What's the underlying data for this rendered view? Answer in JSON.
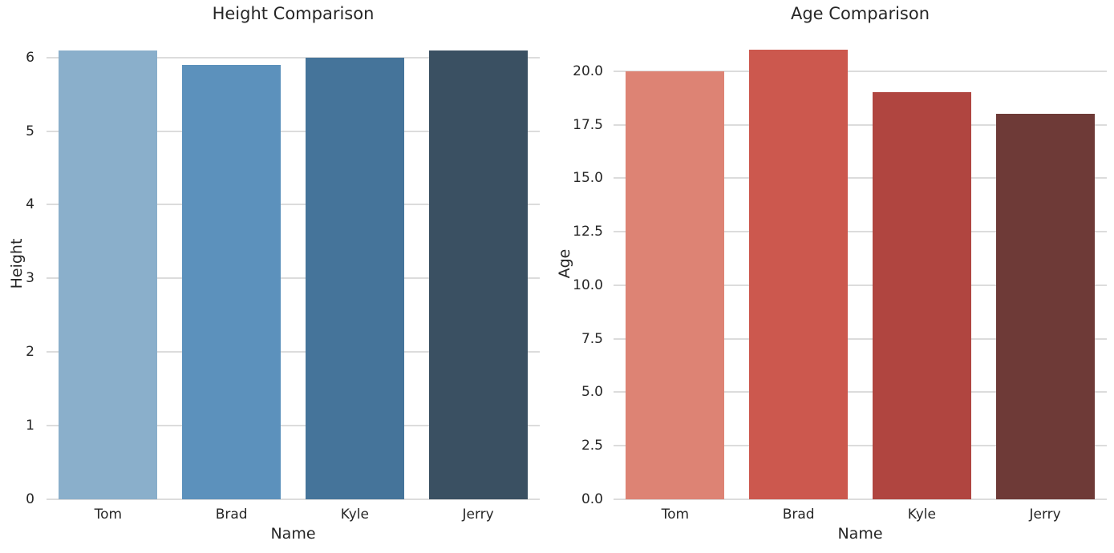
{
  "style": {
    "background": "#ffffff",
    "grid_color": "#dcdcdc",
    "text_color": "#262626"
  },
  "chart_data": [
    {
      "type": "bar",
      "title": "Height Comparison",
      "xlabel": "Name",
      "ylabel": "Height",
      "categories": [
        "Tom",
        "Brad",
        "Kyle",
        "Jerry"
      ],
      "values": [
        6.1,
        5.9,
        6.0,
        6.1
      ],
      "bar_colors": [
        "#8AAFCB",
        "#5C91BC",
        "#45749A",
        "#3A5062"
      ],
      "yticks": [
        0,
        1,
        2,
        3,
        4,
        5,
        6
      ],
      "ytick_labels": [
        "0",
        "1",
        "2",
        "3",
        "4",
        "5",
        "6"
      ],
      "ylim": [
        0,
        6.41
      ],
      "grid": true,
      "legend": null
    },
    {
      "type": "bar",
      "title": "Age Comparison",
      "xlabel": "Name",
      "ylabel": "Age",
      "categories": [
        "Tom",
        "Brad",
        "Kyle",
        "Jerry"
      ],
      "values": [
        20,
        21,
        19,
        18
      ],
      "bar_colors": [
        "#DD8374",
        "#CC584E",
        "#B04540",
        "#6E3A37"
      ],
      "yticks": [
        0,
        2.5,
        5,
        7.5,
        10,
        12.5,
        15,
        17.5,
        20
      ],
      "ytick_labels": [
        "0.0",
        "2.5",
        "5.0",
        "7.5",
        "10.0",
        "12.5",
        "15.0",
        "17.5",
        "20.0"
      ],
      "ylim": [
        0,
        22.05
      ],
      "grid": true,
      "legend": null
    }
  ]
}
